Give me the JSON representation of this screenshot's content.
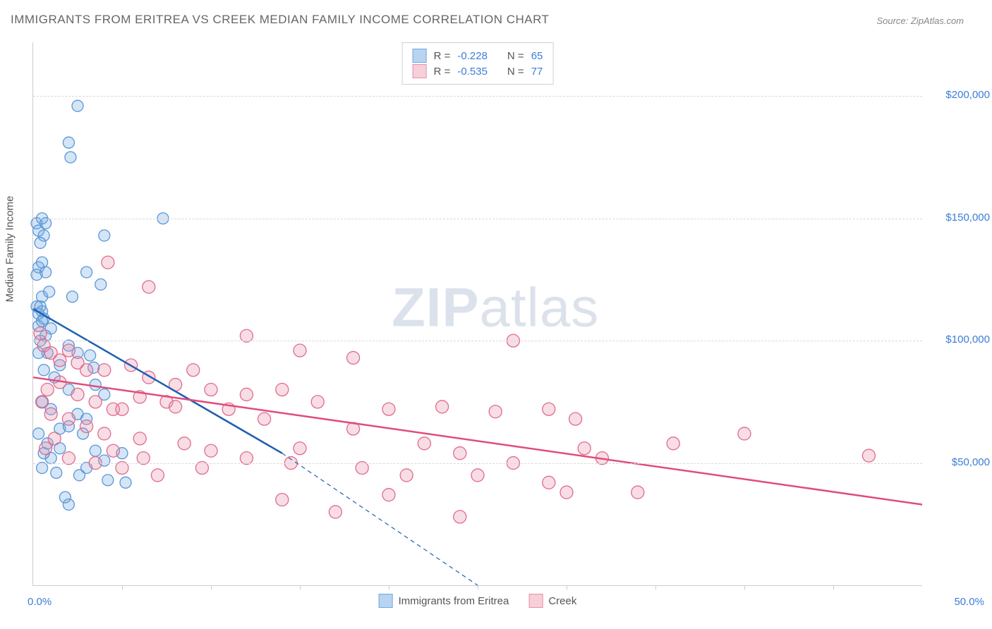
{
  "title": "IMMIGRANTS FROM ERITREA VS CREEK MEDIAN FAMILY INCOME CORRELATION CHART",
  "source": "Source: ZipAtlas.com",
  "watermark": {
    "bold": "ZIP",
    "rest": "atlas"
  },
  "y_axis": {
    "label": "Median Family Income",
    "ticks": [
      {
        "value": 50000,
        "label": "$50,000"
      },
      {
        "value": 100000,
        "label": "$100,000"
      },
      {
        "value": 150000,
        "label": "$150,000"
      },
      {
        "value": 200000,
        "label": "$200,000"
      }
    ],
    "min": 0,
    "max": 222000
  },
  "x_axis": {
    "min": 0,
    "max": 50,
    "left_label": "0.0%",
    "right_label": "50.0%",
    "tick_positions": [
      5,
      10,
      15,
      20,
      25,
      30,
      35,
      40,
      45
    ]
  },
  "legend_top": [
    {
      "swatch_fill": "#b8d4f0",
      "swatch_border": "#6fa8e0",
      "r_label": "R =",
      "r_value": "-0.228",
      "n_label": "N =",
      "n_value": "65"
    },
    {
      "swatch_fill": "#f7cfd9",
      "swatch_border": "#e78fa8",
      "r_label": "R =",
      "r_value": "-0.535",
      "n_label": "N =",
      "n_value": "77"
    }
  ],
  "legend_bottom": [
    {
      "swatch_fill": "#b8d4f0",
      "swatch_border": "#6fa8e0",
      "label": "Immigrants from Eritrea"
    },
    {
      "swatch_fill": "#f7cfd9",
      "swatch_border": "#e78fa8",
      "label": "Creek"
    }
  ],
  "series": [
    {
      "name": "eritrea",
      "color_fill": "rgba(111,168,224,0.30)",
      "color_stroke": "#5a96d8",
      "marker_radius": 8,
      "trend": {
        "color": "#1f5fb0",
        "width": 2.5,
        "x1": 0,
        "y1": 113000,
        "x2_solid": 14,
        "y2_solid": 54000,
        "x2_dash": 25,
        "y2_dash": 0
      },
      "points": [
        [
          0.2,
          148000
        ],
        [
          0.3,
          145000
        ],
        [
          0.5,
          150000
        ],
        [
          0.6,
          143000
        ],
        [
          0.7,
          148000
        ],
        [
          0.4,
          140000
        ],
        [
          0.3,
          130000
        ],
        [
          0.5,
          132000
        ],
        [
          0.2,
          127000
        ],
        [
          0.7,
          128000
        ],
        [
          2.5,
          196000
        ],
        [
          2.0,
          181000
        ],
        [
          2.1,
          175000
        ],
        [
          7.3,
          150000
        ],
        [
          0.2,
          114000
        ],
        [
          0.3,
          111000
        ],
        [
          0.4,
          114000
        ],
        [
          0.5,
          112000
        ],
        [
          0.6,
          109000
        ],
        [
          0.3,
          106000
        ],
        [
          0.5,
          108000
        ],
        [
          3.0,
          128000
        ],
        [
          4.0,
          143000
        ],
        [
          3.8,
          123000
        ],
        [
          2.2,
          118000
        ],
        [
          1.0,
          105000
        ],
        [
          2.0,
          98000
        ],
        [
          2.5,
          95000
        ],
        [
          3.2,
          94000
        ],
        [
          3.4,
          89000
        ],
        [
          0.8,
          95000
        ],
        [
          1.5,
          90000
        ],
        [
          0.6,
          88000
        ],
        [
          1.2,
          85000
        ],
        [
          2.0,
          80000
        ],
        [
          3.5,
          82000
        ],
        [
          4.0,
          78000
        ],
        [
          0.5,
          75000
        ],
        [
          1.0,
          72000
        ],
        [
          2.5,
          70000
        ],
        [
          3.0,
          68000
        ],
        [
          1.5,
          64000
        ],
        [
          0.3,
          62000
        ],
        [
          0.8,
          58000
        ],
        [
          1.5,
          56000
        ],
        [
          3.5,
          55000
        ],
        [
          5.0,
          54000
        ],
        [
          4.0,
          51000
        ],
        [
          0.5,
          48000
        ],
        [
          1.3,
          46000
        ],
        [
          2.6,
          45000
        ],
        [
          4.2,
          43000
        ],
        [
          5.2,
          42000
        ],
        [
          2.0,
          33000
        ],
        [
          1.8,
          36000
        ],
        [
          0.3,
          95000
        ],
        [
          0.4,
          100000
        ],
        [
          0.7,
          102000
        ],
        [
          0.5,
          118000
        ],
        [
          0.9,
          120000
        ],
        [
          2.0,
          65000
        ],
        [
          2.8,
          62000
        ],
        [
          1.0,
          52000
        ],
        [
          0.6,
          54000
        ],
        [
          3.0,
          48000
        ]
      ]
    },
    {
      "name": "creek",
      "color_fill": "rgba(231,143,168,0.30)",
      "color_stroke": "#e06b8f",
      "marker_radius": 9,
      "trend": {
        "color": "#e04d7b",
        "width": 2.5,
        "x1": 0,
        "y1": 85000,
        "x2_solid": 50,
        "y2_solid": 33000
      },
      "points": [
        [
          4.2,
          132000
        ],
        [
          6.5,
          122000
        ],
        [
          0.4,
          103000
        ],
        [
          0.6,
          98000
        ],
        [
          1.0,
          95000
        ],
        [
          1.5,
          92000
        ],
        [
          2.0,
          96000
        ],
        [
          2.5,
          91000
        ],
        [
          3.0,
          88000
        ],
        [
          12.0,
          102000
        ],
        [
          15.0,
          96000
        ],
        [
          18.0,
          93000
        ],
        [
          27.0,
          100000
        ],
        [
          4.0,
          88000
        ],
        [
          5.5,
          90000
        ],
        [
          6.5,
          85000
        ],
        [
          8.0,
          82000
        ],
        [
          9.0,
          88000
        ],
        [
          10.0,
          80000
        ],
        [
          12.0,
          78000
        ],
        [
          2.5,
          78000
        ],
        [
          3.5,
          75000
        ],
        [
          4.5,
          72000
        ],
        [
          6.0,
          77000
        ],
        [
          7.5,
          75000
        ],
        [
          14.0,
          80000
        ],
        [
          16.0,
          75000
        ],
        [
          1.0,
          70000
        ],
        [
          2.0,
          68000
        ],
        [
          3.0,
          65000
        ],
        [
          5.0,
          72000
        ],
        [
          8.0,
          73000
        ],
        [
          11.0,
          72000
        ],
        [
          13.0,
          68000
        ],
        [
          20.0,
          72000
        ],
        [
          23.0,
          73000
        ],
        [
          26.0,
          71000
        ],
        [
          29.0,
          72000
        ],
        [
          30.5,
          68000
        ],
        [
          4.0,
          62000
        ],
        [
          6.0,
          60000
        ],
        [
          8.5,
          58000
        ],
        [
          10.0,
          55000
        ],
        [
          14.5,
          50000
        ],
        [
          18.0,
          64000
        ],
        [
          22.0,
          58000
        ],
        [
          24.0,
          54000
        ],
        [
          27.0,
          50000
        ],
        [
          32.0,
          52000
        ],
        [
          36.0,
          58000
        ],
        [
          40.0,
          62000
        ],
        [
          47.0,
          53000
        ],
        [
          7.0,
          45000
        ],
        [
          12.0,
          52000
        ],
        [
          21.0,
          45000
        ],
        [
          25.0,
          45000
        ],
        [
          29.0,
          42000
        ],
        [
          14.0,
          35000
        ],
        [
          20.0,
          37000
        ],
        [
          17.0,
          30000
        ],
        [
          24.0,
          28000
        ],
        [
          2.0,
          52000
        ],
        [
          3.5,
          50000
        ],
        [
          5.0,
          48000
        ],
        [
          9.5,
          48000
        ],
        [
          1.5,
          83000
        ],
        [
          0.8,
          80000
        ],
        [
          0.5,
          75000
        ],
        [
          1.2,
          60000
        ],
        [
          0.7,
          56000
        ],
        [
          4.5,
          55000
        ],
        [
          6.2,
          52000
        ],
        [
          15.0,
          56000
        ],
        [
          18.5,
          48000
        ],
        [
          31.0,
          56000
        ],
        [
          34.0,
          38000
        ],
        [
          30.0,
          38000
        ]
      ]
    }
  ],
  "colors": {
    "grid": "#d8d8d8",
    "axis": "#cccccc",
    "title_text": "#666666",
    "axis_text": "#555555",
    "tick_text": "#3b7dd8"
  }
}
